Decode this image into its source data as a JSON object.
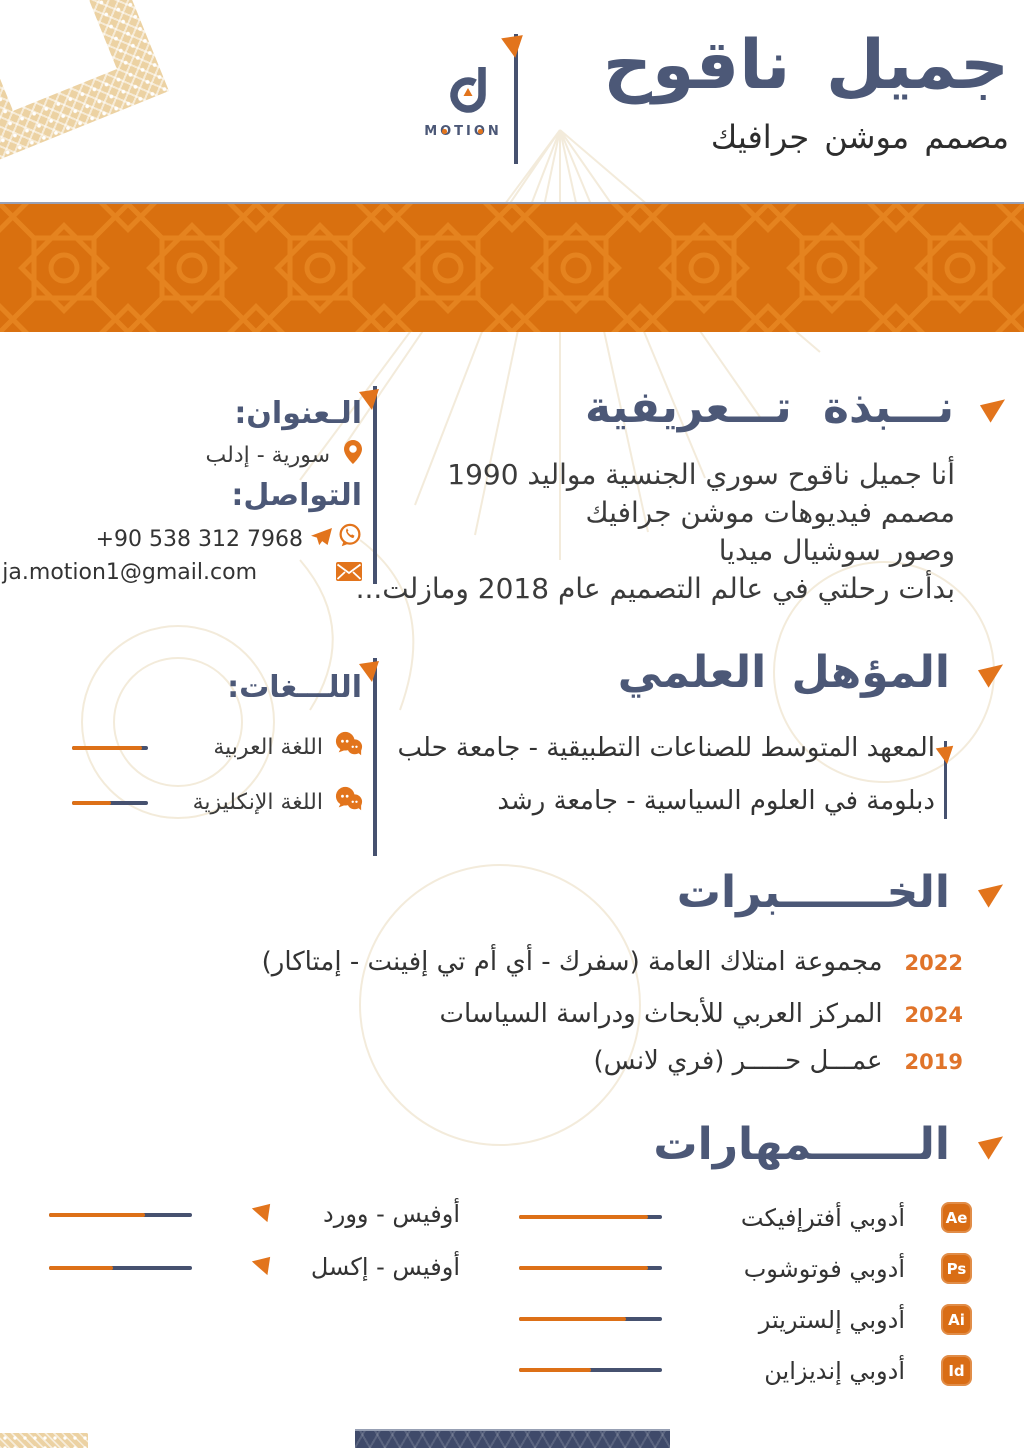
{
  "header": {
    "name": "جميل ناقوح",
    "job_title": "مصمم موشن جرافيك",
    "logo_text": "MOTION"
  },
  "about": {
    "title": "نـــبذة تـــعريفية",
    "lines": [
      "أنا جميل ناقوح سوري الجنسية مواليد 1990",
      "مصمم فيديوهات موشن جرافيك",
      "وصور سوشيال ميديا",
      "بدأت رحلتي في عالم التصميم عام 2018 ومازلت..."
    ]
  },
  "contact": {
    "address_title": "الـعنوان:",
    "address": "سورية - إدلب",
    "contact_title": "التواصل:",
    "phone": "+90 538 312 7968",
    "email": "ja.motion1@gmail.com"
  },
  "education": {
    "title": "المؤهل العلمي",
    "items": [
      "المعهد المتوسط للصناعات التطبيقية - جامعة حلب",
      "دبلومة في العلوم السياسية - جامعة رشد"
    ]
  },
  "languages": {
    "title": "اللـــغات:",
    "items": [
      {
        "label": "اللغة العربية",
        "level": 92
      },
      {
        "label": "اللغة الإنكليزية",
        "level": 51
      }
    ]
  },
  "experience": {
    "title": "الخـــــــبرات",
    "items": [
      {
        "year": "2022",
        "text": "مجموعة امتلاك العامة (سفرك - أي أم تي إفينت - إمتاكار)"
      },
      {
        "year": "2024",
        "text": "المركز العربي للأبحاث ودراسة السياسات"
      },
      {
        "year": "2019",
        "text": "عمـــل حـــــر (فري لانس)"
      }
    ]
  },
  "skills": {
    "title": "الـــــــمهارات",
    "items": [
      {
        "icon": "Ae",
        "label": "أدوبي أفترإفيكت",
        "level": 90
      },
      {
        "icon": "Ps",
        "label": "أدوبي فوتوشوب",
        "level": 90
      },
      {
        "icon": "Ai",
        "label": "أدوبي إلستريتر",
        "level": 75
      },
      {
        "icon": "Id",
        "label": "أدوبي إنديزاين",
        "level": 50
      }
    ]
  },
  "office": {
    "items": [
      {
        "label": "أوفيس - وورد",
        "level": 67
      },
      {
        "label": "أوفيس - إكسل",
        "level": 45
      }
    ]
  },
  "colors": {
    "navy": "#4c5877",
    "orange": "#e2741c",
    "banner_orange": "#d9700f",
    "year_orange": "#e0742a",
    "text_dark": "#333333",
    "ornament_tan": "#ecd2a3"
  }
}
